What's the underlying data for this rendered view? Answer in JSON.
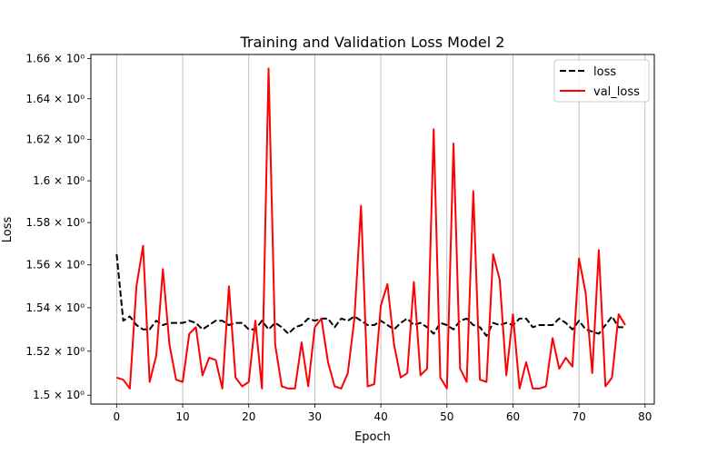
{
  "chart_data": {
    "type": "line",
    "title": "Training and Validation Loss Model 2",
    "xlabel": "Epoch",
    "ylabel": "Loss",
    "xlim": [
      -3.9,
      81.4
    ],
    "ylim": [
      1.496,
      1.662
    ],
    "yscale": "log",
    "xticks": [
      0,
      10,
      20,
      30,
      40,
      50,
      60,
      70,
      80
    ],
    "xtick_labels": [
      "0",
      "10",
      "20",
      "30",
      "40",
      "50",
      "60",
      "70",
      "80"
    ],
    "yticks": [
      1.5,
      1.52,
      1.54,
      1.56,
      1.58,
      1.6,
      1.62,
      1.64,
      1.66
    ],
    "ytick_labels": [
      "1.5 × 10⁰",
      "1.52 × 10⁰",
      "1.54 × 10⁰",
      "1.56 × 10⁰",
      "1.58 × 10⁰",
      "1.6 × 10⁰",
      "1.62 × 10⁰",
      "1.64 × 10⁰",
      "1.66 × 10⁰"
    ],
    "grid": "x-major",
    "legend_position": "upper right",
    "x": [
      0,
      1,
      2,
      3,
      4,
      5,
      6,
      7,
      8,
      9,
      10,
      11,
      12,
      13,
      14,
      15,
      16,
      17,
      18,
      19,
      20,
      21,
      22,
      23,
      24,
      25,
      26,
      27,
      28,
      29,
      30,
      31,
      32,
      33,
      34,
      35,
      36,
      37,
      38,
      39,
      40,
      41,
      42,
      43,
      44,
      45,
      46,
      47,
      48,
      49,
      50,
      51,
      52,
      53,
      54,
      55,
      56,
      57,
      58,
      59,
      60,
      61,
      62,
      63,
      64,
      65,
      66,
      67,
      68,
      69,
      70,
      71,
      72,
      73,
      74,
      75,
      76,
      77
    ],
    "series": [
      {
        "name": "loss",
        "color": "#000000",
        "linestyle": "dashed",
        "values": [
          1.565,
          1.534,
          1.536,
          1.532,
          1.53,
          1.53,
          1.534,
          1.532,
          1.533,
          1.533,
          1.533,
          1.534,
          1.533,
          1.53,
          1.532,
          1.534,
          1.534,
          1.532,
          1.533,
          1.533,
          1.53,
          1.53,
          1.534,
          1.53,
          1.533,
          1.531,
          1.528,
          1.531,
          1.532,
          1.535,
          1.534,
          1.535,
          1.535,
          1.531,
          1.535,
          1.534,
          1.536,
          1.534,
          1.532,
          1.532,
          1.534,
          1.532,
          1.53,
          1.533,
          1.535,
          1.532,
          1.533,
          1.531,
          1.528,
          1.533,
          1.532,
          1.53,
          1.534,
          1.535,
          1.532,
          1.531,
          1.527,
          1.533,
          1.532,
          1.533,
          1.532,
          1.535,
          1.535,
          1.531,
          1.532,
          1.532,
          1.532,
          1.535,
          1.533,
          1.53,
          1.534,
          1.53,
          1.529,
          1.528,
          1.532,
          1.536,
          1.531,
          1.531
        ]
      },
      {
        "name": "val_loss",
        "color": "#ff0000",
        "linestyle": "solid",
        "values": [
          1.508,
          1.507,
          1.503,
          1.55,
          1.569,
          1.506,
          1.518,
          1.558,
          1.523,
          1.507,
          1.506,
          1.528,
          1.531,
          1.509,
          1.517,
          1.516,
          1.503,
          1.55,
          1.508,
          1.504,
          1.506,
          1.534,
          1.503,
          1.655,
          1.523,
          1.504,
          1.503,
          1.503,
          1.524,
          1.504,
          1.531,
          1.535,
          1.515,
          1.504,
          1.503,
          1.51,
          1.535,
          1.588,
          1.504,
          1.505,
          1.541,
          1.551,
          1.523,
          1.508,
          1.51,
          1.552,
          1.509,
          1.512,
          1.625,
          1.508,
          1.503,
          1.618,
          1.512,
          1.506,
          1.595,
          1.507,
          1.506,
          1.565,
          1.553,
          1.509,
          1.537,
          1.503,
          1.515,
          1.503,
          1.503,
          1.504,
          1.526,
          1.512,
          1.517,
          1.513,
          1.563,
          1.547,
          1.51,
          1.567,
          1.504,
          1.508,
          1.537,
          1.532
        ]
      }
    ]
  }
}
